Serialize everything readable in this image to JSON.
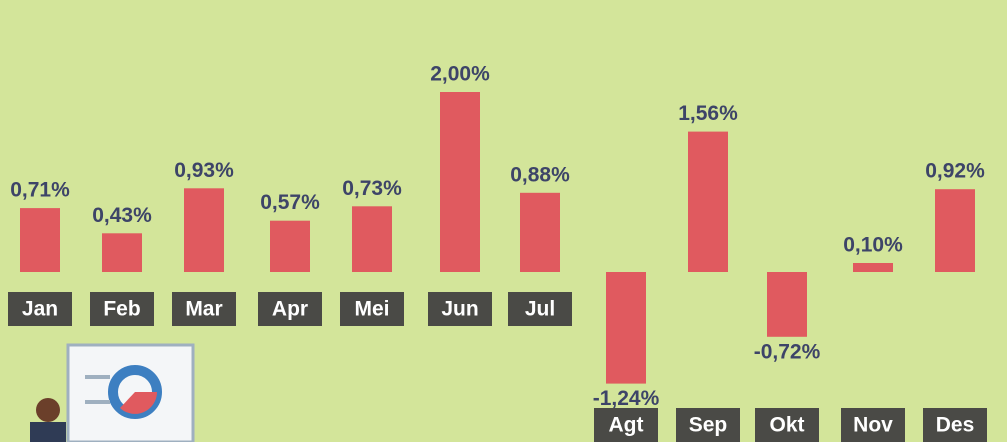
{
  "chart_data": {
    "type": "bar",
    "categories": [
      "Jan",
      "Feb",
      "Mar",
      "Apr",
      "Mei",
      "Jun",
      "Jul",
      "Agt",
      "Sep",
      "Okt",
      "Nov",
      "Des"
    ],
    "values": [
      0.71,
      0.43,
      0.93,
      0.57,
      0.73,
      2.0,
      0.88,
      -1.24,
      1.56,
      -0.72,
      0.1,
      0.92
    ],
    "value_labels": [
      "0,71%",
      "0,43%",
      "0,93%",
      "0,57%",
      "0,73%",
      "2,00%",
      "0,88%",
      "-1,24%",
      "1,56%",
      "-0,72%",
      "0,10%",
      "0,92%"
    ],
    "color": "#e05a5f"
  }
}
